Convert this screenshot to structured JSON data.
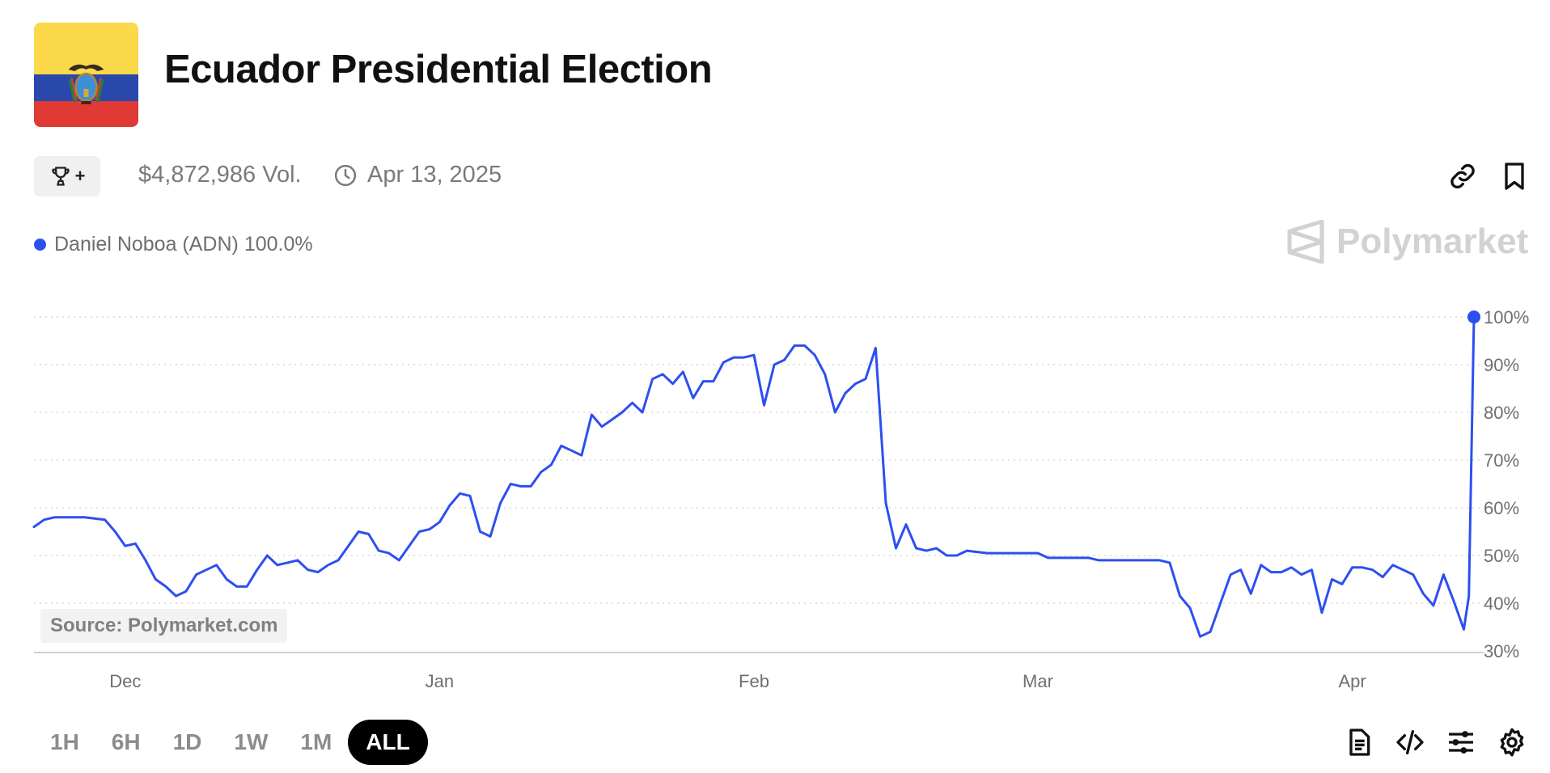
{
  "header": {
    "title": "Ecuador Presidential Election",
    "flag_colors": {
      "yellow": "#fcd94a",
      "blue": "#2848ab",
      "red": "#e13a35"
    },
    "flag_icon": "ecuador-flag-icon"
  },
  "meta": {
    "trophy_icon": "trophy-icon",
    "trophy_plus": "+",
    "volume": "$4,872,986 Vol.",
    "clock_icon": "clock-icon",
    "end_date": "Apr 13, 2025",
    "link_icon": "link-icon",
    "bookmark_icon": "bookmark-icon"
  },
  "legend": {
    "label": "Daniel Noboa (ADN) 100.0%",
    "color": "#2d4ff0"
  },
  "watermark": {
    "text": "Polymarket",
    "icon": "polymarket-logo-icon"
  },
  "source": "Source: Polymarket.com",
  "ranges": {
    "options": [
      "1H",
      "6H",
      "1D",
      "1W",
      "1M",
      "ALL"
    ],
    "selected": "ALL"
  },
  "toolbar": {
    "icons": [
      "document-icon",
      "code-icon",
      "sliders-icon",
      "settings-icon"
    ]
  },
  "chart_data": {
    "type": "line",
    "title": "",
    "xlabel": "",
    "ylabel": "",
    "x_ticks": [
      "Dec",
      "Jan",
      "Feb",
      "Mar",
      "Apr"
    ],
    "y_ticks": [
      "30%",
      "40%",
      "50%",
      "60%",
      "70%",
      "80%",
      "90%",
      "100%"
    ],
    "ylim": [
      30,
      100
    ],
    "grid": "horizontal dotted",
    "x_domain": [
      "2024-11-22",
      "2025-04-13"
    ],
    "series": [
      {
        "name": "Daniel Noboa (ADN)",
        "color": "#2d4ff0",
        "points": [
          [
            "2024-11-22",
            56
          ],
          [
            "2024-11-23",
            57.5
          ],
          [
            "2024-11-24",
            58
          ],
          [
            "2024-11-25",
            58
          ],
          [
            "2024-11-27",
            58
          ],
          [
            "2024-11-29",
            57.5
          ],
          [
            "2024-11-30",
            55
          ],
          [
            "2024-12-01",
            52
          ],
          [
            "2024-12-02",
            52.5
          ],
          [
            "2024-12-03",
            49
          ],
          [
            "2024-12-04",
            45
          ],
          [
            "2024-12-05",
            43.5
          ],
          [
            "2024-12-06",
            41.5
          ],
          [
            "2024-12-07",
            42.5
          ],
          [
            "2024-12-08",
            46
          ],
          [
            "2024-12-09",
            47
          ],
          [
            "2024-12-10",
            48
          ],
          [
            "2024-12-11",
            45
          ],
          [
            "2024-12-12",
            43.5
          ],
          [
            "2024-12-13",
            43.5
          ],
          [
            "2024-12-14",
            47
          ],
          [
            "2024-12-15",
            50
          ],
          [
            "2024-12-16",
            48
          ],
          [
            "2024-12-17",
            48.5
          ],
          [
            "2024-12-18",
            49
          ],
          [
            "2024-12-19",
            47
          ],
          [
            "2024-12-20",
            46.5
          ],
          [
            "2024-12-21",
            48
          ],
          [
            "2024-12-22",
            49
          ],
          [
            "2024-12-23",
            52
          ],
          [
            "2024-12-24",
            55
          ],
          [
            "2024-12-25",
            54.5
          ],
          [
            "2024-12-26",
            51
          ],
          [
            "2024-12-27",
            50.5
          ],
          [
            "2024-12-28",
            49
          ],
          [
            "2024-12-29",
            52
          ],
          [
            "2024-12-30",
            55
          ],
          [
            "2024-12-31",
            55.5
          ],
          [
            "2025-01-01",
            57
          ],
          [
            "2025-01-02",
            60.5
          ],
          [
            "2025-01-03",
            63
          ],
          [
            "2025-01-04",
            62.5
          ],
          [
            "2025-01-05",
            55
          ],
          [
            "2025-01-06",
            54
          ],
          [
            "2025-01-07",
            61
          ],
          [
            "2025-01-08",
            65
          ],
          [
            "2025-01-09",
            64.5
          ],
          [
            "2025-01-10",
            64.5
          ],
          [
            "2025-01-11",
            67.5
          ],
          [
            "2025-01-12",
            69
          ],
          [
            "2025-01-13",
            73
          ],
          [
            "2025-01-14",
            72
          ],
          [
            "2025-01-15",
            71
          ],
          [
            "2025-01-16",
            79.5
          ],
          [
            "2025-01-17",
            77
          ],
          [
            "2025-01-18",
            78.5
          ],
          [
            "2025-01-19",
            80
          ],
          [
            "2025-01-20",
            82
          ],
          [
            "2025-01-21",
            80
          ],
          [
            "2025-01-22",
            87
          ],
          [
            "2025-01-23",
            88
          ],
          [
            "2025-01-24",
            86
          ],
          [
            "2025-01-25",
            88.5
          ],
          [
            "2025-01-26",
            83
          ],
          [
            "2025-01-27",
            86.5
          ],
          [
            "2025-01-28",
            86.5
          ],
          [
            "2025-01-29",
            90.5
          ],
          [
            "2025-01-30",
            91.5
          ],
          [
            "2025-01-31",
            91.5
          ],
          [
            "2025-02-01",
            92
          ],
          [
            "2025-02-02",
            81.5
          ],
          [
            "2025-02-03",
            90
          ],
          [
            "2025-02-04",
            91
          ],
          [
            "2025-02-05",
            94
          ],
          [
            "2025-02-06",
            94
          ],
          [
            "2025-02-07",
            92
          ],
          [
            "2025-02-08",
            88
          ],
          [
            "2025-02-09",
            80
          ],
          [
            "2025-02-10",
            84
          ],
          [
            "2025-02-11",
            86
          ],
          [
            "2025-02-12",
            87
          ],
          [
            "2025-02-13",
            93.5
          ],
          [
            "2025-02-14",
            61
          ],
          [
            "2025-02-15",
            51.5
          ],
          [
            "2025-02-16",
            56.5
          ],
          [
            "2025-02-17",
            51.5
          ],
          [
            "2025-02-18",
            51
          ],
          [
            "2025-02-19",
            51.5
          ],
          [
            "2025-02-20",
            50
          ],
          [
            "2025-02-21",
            50
          ],
          [
            "2025-02-22",
            51
          ],
          [
            "2025-02-24",
            50.5
          ],
          [
            "2025-03-01",
            50.5
          ],
          [
            "2025-03-02",
            49.5
          ],
          [
            "2025-03-06",
            49.5
          ],
          [
            "2025-03-07",
            49
          ],
          [
            "2025-03-11",
            49
          ],
          [
            "2025-03-13",
            49
          ],
          [
            "2025-03-14",
            48.5
          ],
          [
            "2025-03-15",
            41.5
          ],
          [
            "2025-03-16",
            39
          ],
          [
            "2025-03-17",
            33
          ],
          [
            "2025-03-18",
            34
          ],
          [
            "2025-03-19",
            40
          ],
          [
            "2025-03-20",
            46
          ],
          [
            "2025-03-21",
            47
          ],
          [
            "2025-03-22",
            42
          ],
          [
            "2025-03-23",
            48
          ],
          [
            "2025-03-24",
            46.5
          ],
          [
            "2025-03-25",
            46.5
          ],
          [
            "2025-03-26",
            47.5
          ],
          [
            "2025-03-27",
            46
          ],
          [
            "2025-03-28",
            47
          ],
          [
            "2025-03-29",
            38
          ],
          [
            "2025-03-30",
            45
          ],
          [
            "2025-03-31",
            44
          ],
          [
            "2025-04-01",
            47.5
          ],
          [
            "2025-04-02",
            47.5
          ],
          [
            "2025-04-03",
            47
          ],
          [
            "2025-04-04",
            45.5
          ],
          [
            "2025-04-05",
            48
          ],
          [
            "2025-04-06",
            47
          ],
          [
            "2025-04-07",
            46
          ],
          [
            "2025-04-08",
            42
          ],
          [
            "2025-04-09",
            39.5
          ],
          [
            "2025-04-10",
            46
          ],
          [
            "2025-04-11",
            40.5
          ],
          [
            "2025-04-12",
            34.5
          ],
          [
            "2025-04-12T12",
            41.5
          ],
          [
            "2025-04-13",
            100
          ]
        ]
      }
    ],
    "last_value_marker": 100
  }
}
